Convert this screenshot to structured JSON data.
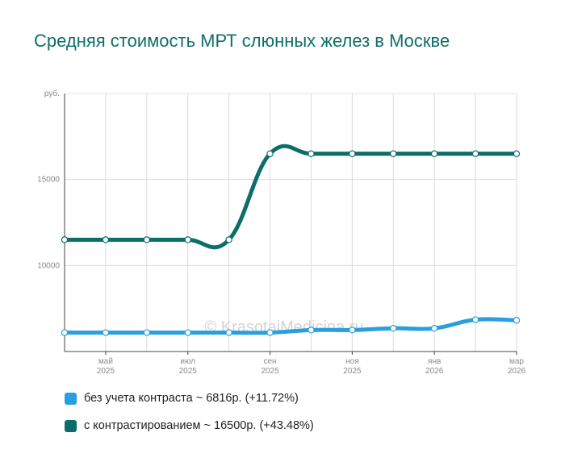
{
  "chart_data": {
    "type": "line",
    "title": "Средняя стоимость МРТ слюнных желез в Москве",
    "y_unit": "руб.",
    "yticks": [
      {
        "value": 10000,
        "label": "10000"
      },
      {
        "value": 15000,
        "label": "15000"
      }
    ],
    "ylim": [
      5000,
      20000
    ],
    "x_count": 12,
    "xticks": [
      {
        "index": 1,
        "month": "май",
        "year": "2025"
      },
      {
        "index": 3,
        "month": "июл",
        "year": "2025"
      },
      {
        "index": 5,
        "month": "сен",
        "year": "2025"
      },
      {
        "index": 7,
        "month": "ноя",
        "year": "2025"
      },
      {
        "index": 9,
        "month": "янв",
        "year": "2026"
      },
      {
        "index": 11,
        "month": "мар",
        "year": "2026"
      }
    ],
    "series": [
      {
        "name": "без учета контраста",
        "legend": "без учета контраста ~ 6816р. (+11.72%)",
        "color": "#2a9fde",
        "values": [
          6100,
          6100,
          6100,
          6100,
          6100,
          6100,
          6250,
          6250,
          6350,
          6350,
          6850,
          6816
        ]
      },
      {
        "name": "с контрастированием",
        "legend": "с контрастированием ~ 16500р. (+43.48%)",
        "color": "#0b6e68",
        "values": [
          11500,
          11500,
          11500,
          11500,
          11500,
          16500,
          16500,
          16500,
          16500,
          16500,
          16500,
          16500
        ]
      }
    ],
    "watermark": "© KrasotaiMedicina.ru"
  }
}
